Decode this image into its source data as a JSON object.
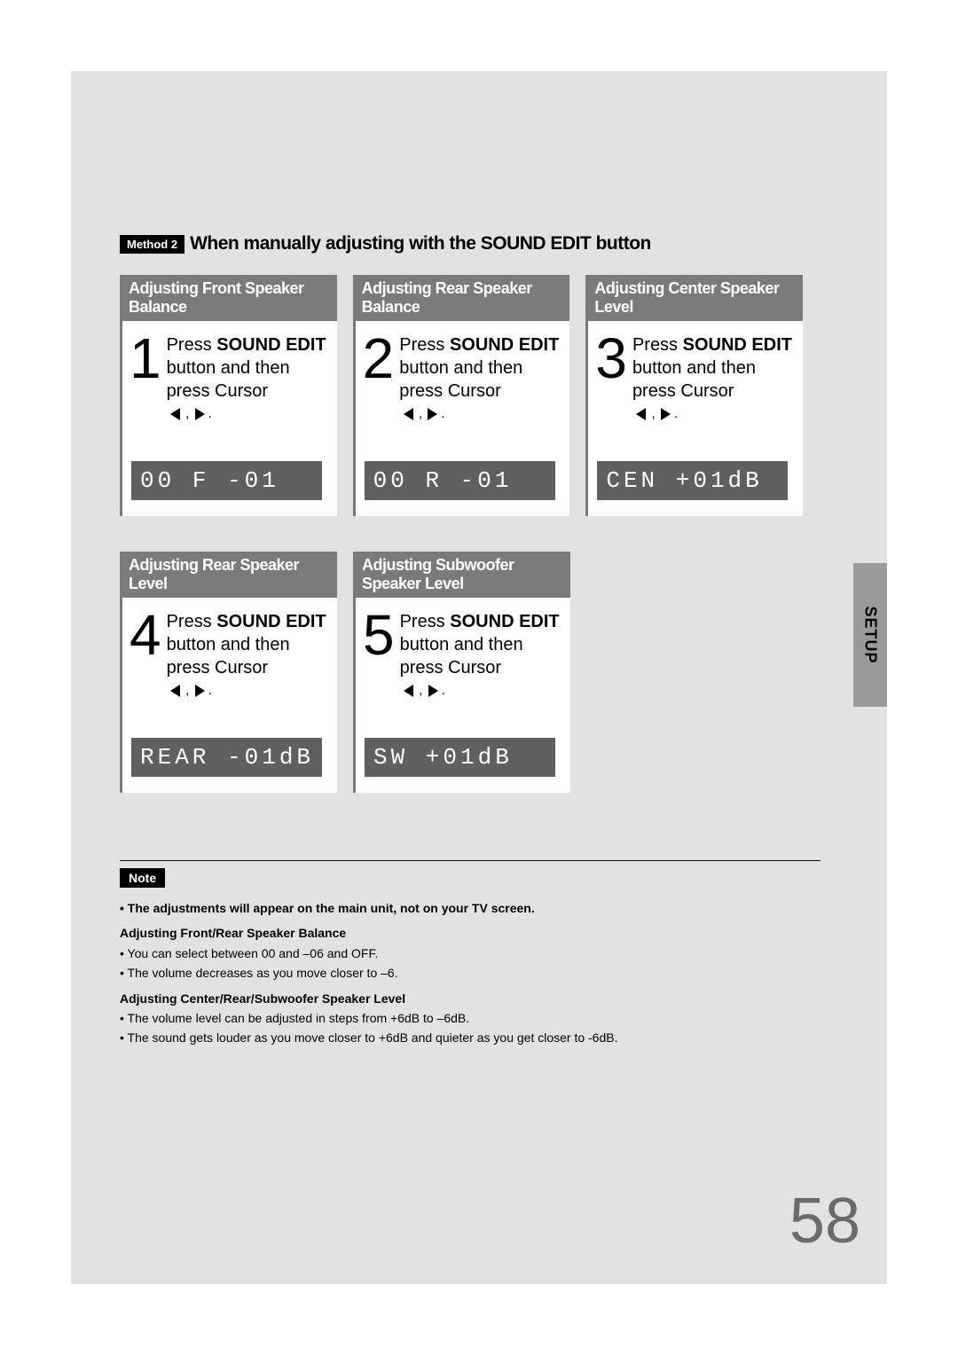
{
  "colors": {
    "page_bg": "#e2e2e2",
    "header_bar": "#7a7a7a",
    "display_bg": "#606060",
    "side_tab_bg": "#9a9a9a",
    "pagenum_color": "#6b6b6b"
  },
  "method": {
    "badge": "Method 2",
    "title": "When manually adjusting with the SOUND EDIT button"
  },
  "steps": [
    {
      "num": "1",
      "header": "Adjusting Front Speaker Balance",
      "line_press": "Press ",
      "line_sound": "SOUND EDIT",
      "line_button": " button and then press Cursor",
      "display": "00 F -01"
    },
    {
      "num": "2",
      "header": "Adjusting Rear Speaker Balance",
      "line_press": "Press ",
      "line_sound": "SOUND EDIT",
      "line_button": " button and then press Cursor",
      "display": "00 R -01"
    },
    {
      "num": "3",
      "header": "Adjusting Center Speaker Level",
      "line_press": "Press ",
      "line_sound": "SOUND EDIT",
      "line_button": " button and then press Cursor",
      "display": "CEN +01dB"
    },
    {
      "num": "4",
      "header": "Adjusting Rear Speaker Level",
      "line_press": "Press ",
      "line_sound": "SOUND EDIT",
      "line_button": " button and then press Cursor",
      "display": "REAR -01dB"
    },
    {
      "num": "5",
      "header": "Adjusting Subwoofer Speaker Level",
      "line_press": "Press ",
      "line_sound": "SOUND EDIT",
      "line_button": " button and then press Cursor",
      "display": "SW  +01dB"
    }
  ],
  "side_tab": "SETUP",
  "note": {
    "label": "Note",
    "lead": "The adjustments will appear on the main unit, not on your TV screen.",
    "sub1": "Adjusting Front/Rear Speaker Balance",
    "sub1_li1": "You can select between 00 and –06 and OFF.",
    "sub1_li2": "The volume decreases as you move closer to –6.",
    "sub2": "Adjusting Center/Rear/Subwoofer Speaker Level",
    "sub2_li1": "The volume level can be adjusted in steps from +6dB to –6dB.",
    "sub2_li2": "The sound gets louder as you move closer to +6dB and quieter as you get closer to -6dB."
  },
  "page_number": "58"
}
